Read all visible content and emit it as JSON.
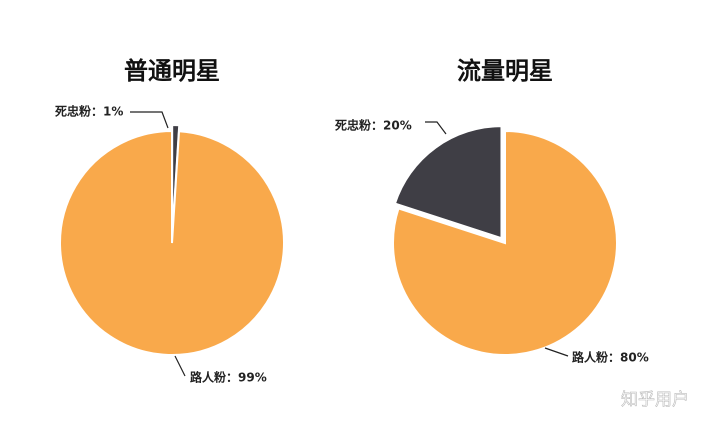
{
  "chart_data": [
    {
      "type": "pie",
      "title": "普通明星",
      "values": [
        1,
        99
      ],
      "value_labels": [
        "死忠粉：1%",
        "路人粉：99%"
      ],
      "colors": [
        "#3f3e45",
        "#f9a94b"
      ],
      "direction": "clockwise"
    },
    {
      "type": "pie",
      "title": "流量明星",
      "values": [
        20,
        80
      ],
      "value_labels": [
        "死忠粉：20%",
        "路人粉：80%"
      ],
      "colors": [
        "#3f3e45",
        "#f9a94b"
      ],
      "direction": "counterclockwise"
    }
  ],
  "watermark": "知乎用户"
}
